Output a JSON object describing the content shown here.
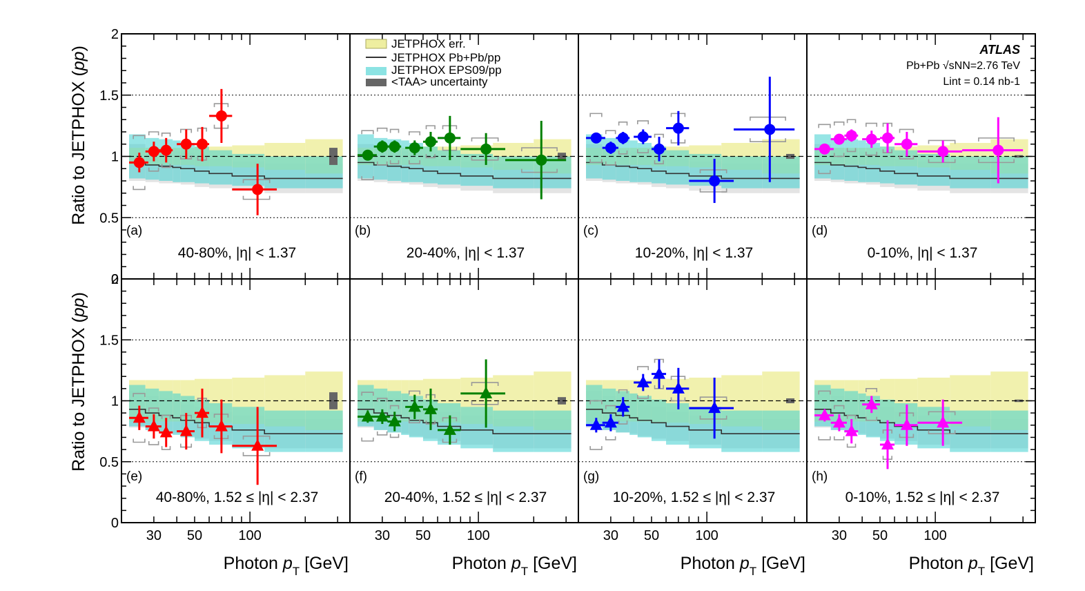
{
  "colors": {
    "red": "#ff0000",
    "green": "#008000",
    "blue": "#0000ff",
    "magenta": "#ff00ff",
    "jetphox_err": "#eeeea0",
    "eps09": "#40d0d0",
    "pbpb_band": "#d8d8d8",
    "taa": "#666666",
    "line": "#333333",
    "sys": "#999999"
  },
  "figure": {
    "ylabel": "Ratio to JETPHOX (pp)",
    "ylabel_main": "Ratio to JETPHOX (",
    "ylabel_italic": "pp",
    "ylabel_close": ")",
    "xlabel_main": "Photon ",
    "xlabel_italic": "p",
    "xlabel_sub": "T",
    "xlabel_unit": " [GeV]",
    "yticks": [
      "0",
      "0.5",
      "1",
      "1.5",
      "2"
    ],
    "xticks": [
      "30",
      "50",
      "100"
    ]
  },
  "legend": {
    "items": [
      {
        "key": "err",
        "label": "JETPHOX err."
      },
      {
        "key": "pbpb",
        "label": "JETPHOX Pb+Pb/pp"
      },
      {
        "key": "eps",
        "label": "JETPHOX EPS09/pp"
      },
      {
        "key": "taa",
        "label": "<TAA> uncertainty"
      }
    ]
  },
  "atlas": {
    "title": "ATLAS",
    "energy": "Pb+Pb √sNN=2.76 TeV",
    "lumi": "Lint = 0.14 nb-1"
  },
  "chart_data": {
    "type": "scatter",
    "x_scale": "log",
    "xlim": [
      20,
      350
    ],
    "ylim": [
      0,
      2
    ],
    "panels": [
      {
        "id": "a",
        "tag": "(a)",
        "label": "40-80%, |η| < 1.37",
        "color": "red",
        "marker": "circle",
        "taa": 0.07,
        "points": [
          {
            "x": 25,
            "y": 0.95,
            "xerr": 3,
            "yerr": 0.08,
            "sys": 0.22
          },
          {
            "x": 30,
            "y": 1.04,
            "xerr": 3,
            "yerr": 0.08,
            "sys": 0.16
          },
          {
            "x": 35,
            "y": 1.05,
            "xerr": 3,
            "yerr": 0.1,
            "sys": 0.14
          },
          {
            "x": 45,
            "y": 1.1,
            "xerr": 5,
            "yerr": 0.12,
            "sys": 0.12
          },
          {
            "x": 55,
            "y": 1.1,
            "xerr": 5,
            "yerr": 0.14,
            "sys": 0.13
          },
          {
            "x": 70,
            "y": 1.33,
            "xerr": 10,
            "yerr": 0.22,
            "sys": 0.1
          },
          {
            "x": 110,
            "y": 0.73,
            "xerr": 30,
            "yerr": 0.21,
            "sys": 0.08
          }
        ]
      },
      {
        "id": "b",
        "tag": "(b)",
        "label": "20-40%, |η| < 1.37",
        "color": "green",
        "marker": "circle",
        "taa": 0.03,
        "points": [
          {
            "x": 25,
            "y": 1.01,
            "xerr": 3,
            "yerr": 0.04,
            "sys": 0.2
          },
          {
            "x": 30,
            "y": 1.08,
            "xerr": 3,
            "yerr": 0.05,
            "sys": 0.15
          },
          {
            "x": 35,
            "y": 1.08,
            "xerr": 3,
            "yerr": 0.05,
            "sys": 0.14
          },
          {
            "x": 45,
            "y": 1.07,
            "xerr": 5,
            "yerr": 0.06,
            "sys": 0.13
          },
          {
            "x": 55,
            "y": 1.12,
            "xerr": 5,
            "yerr": 0.08,
            "sys": 0.13
          },
          {
            "x": 70,
            "y": 1.15,
            "xerr": 10,
            "yerr": 0.18,
            "sys": 0.1
          },
          {
            "x": 110,
            "y": 1.06,
            "xerr": 30,
            "yerr": 0.13,
            "sys": 0.09
          },
          {
            "x": 220,
            "y": 0.97,
            "xerr": 80,
            "yerr": 0.32,
            "sys": 0.1
          }
        ]
      },
      {
        "id": "c",
        "tag": "(c)",
        "label": "10-20%, |η| < 1.37",
        "color": "blue",
        "marker": "circle",
        "taa": 0.02,
        "points": [
          {
            "x": 25,
            "y": 1.15,
            "xerr": 3,
            "yerr": 0.04,
            "sys": 0.2
          },
          {
            "x": 30,
            "y": 1.07,
            "xerr": 3,
            "yerr": 0.05,
            "sys": 0.14
          },
          {
            "x": 35,
            "y": 1.15,
            "xerr": 3,
            "yerr": 0.05,
            "sys": 0.13
          },
          {
            "x": 45,
            "y": 1.16,
            "xerr": 5,
            "yerr": 0.06,
            "sys": 0.13
          },
          {
            "x": 55,
            "y": 1.06,
            "xerr": 5,
            "yerr": 0.1,
            "sys": 0.12
          },
          {
            "x": 70,
            "y": 1.23,
            "xerr": 10,
            "yerr": 0.14,
            "sys": 0.12
          },
          {
            "x": 110,
            "y": 0.8,
            "xerr": 30,
            "yerr": 0.18,
            "sys": 0.09
          },
          {
            "x": 220,
            "y": 1.22,
            "xerr": 80,
            "yerr": 0.43,
            "sys": 0.1
          }
        ]
      },
      {
        "id": "d",
        "tag": "(d)",
        "label": "0-10%, |η| < 1.37",
        "color": "magenta",
        "marker": "circle",
        "taa": 0.01,
        "points": [
          {
            "x": 25,
            "y": 1.06,
            "xerr": 3,
            "yerr": 0.04,
            "sys": 0.2
          },
          {
            "x": 30,
            "y": 1.14,
            "xerr": 3,
            "yerr": 0.04,
            "sys": 0.14
          },
          {
            "x": 35,
            "y": 1.17,
            "xerr": 3,
            "yerr": 0.05,
            "sys": 0.13
          },
          {
            "x": 45,
            "y": 1.14,
            "xerr": 5,
            "yerr": 0.07,
            "sys": 0.13
          },
          {
            "x": 55,
            "y": 1.15,
            "xerr": 5,
            "yerr": 0.12,
            "sys": 0.12
          },
          {
            "x": 70,
            "y": 1.1,
            "xerr": 10,
            "yerr": 0.1,
            "sys": 0.12
          },
          {
            "x": 110,
            "y": 1.04,
            "xerr": 30,
            "yerr": 0.09,
            "sys": 0.09
          },
          {
            "x": 220,
            "y": 1.05,
            "xerr": 80,
            "yerr": 0.27,
            "sys": 0.1
          }
        ]
      },
      {
        "id": "e",
        "tag": "(e)",
        "label": "40-80%, 1.52 ≤ |η| < 2.37",
        "color": "red",
        "marker": "triangle",
        "taa": 0.07,
        "points": [
          {
            "x": 25,
            "y": 0.86,
            "xerr": 3,
            "yerr": 0.1,
            "sys": 0.2
          },
          {
            "x": 30,
            "y": 0.79,
            "xerr": 3,
            "yerr": 0.1,
            "sys": 0.15
          },
          {
            "x": 35,
            "y": 0.74,
            "xerr": 3,
            "yerr": 0.12,
            "sys": 0.14
          },
          {
            "x": 45,
            "y": 0.75,
            "xerr": 5,
            "yerr": 0.15,
            "sys": 0.13
          },
          {
            "x": 55,
            "y": 0.9,
            "xerr": 5,
            "yerr": 0.2,
            "sys": 0.12
          },
          {
            "x": 70,
            "y": 0.79,
            "xerr": 10,
            "yerr": 0.22,
            "sys": 0.1
          },
          {
            "x": 110,
            "y": 0.63,
            "xerr": 30,
            "yerr": 0.32,
            "sys": 0.08
          }
        ]
      },
      {
        "id": "f",
        "tag": "(f)",
        "label": "20-40%, 1.52 ≤ |η| < 2.37",
        "color": "green",
        "marker": "triangle",
        "taa": 0.03,
        "points": [
          {
            "x": 25,
            "y": 0.87,
            "xerr": 3,
            "yerr": 0.05,
            "sys": 0.2
          },
          {
            "x": 30,
            "y": 0.87,
            "xerr": 3,
            "yerr": 0.06,
            "sys": 0.15
          },
          {
            "x": 35,
            "y": 0.83,
            "xerr": 3,
            "yerr": 0.08,
            "sys": 0.13
          },
          {
            "x": 45,
            "y": 0.95,
            "xerr": 5,
            "yerr": 0.1,
            "sys": 0.13
          },
          {
            "x": 55,
            "y": 0.93,
            "xerr": 5,
            "yerr": 0.17,
            "sys": 0.12
          },
          {
            "x": 70,
            "y": 0.76,
            "xerr": 10,
            "yerr": 0.12,
            "sys": 0.1
          },
          {
            "x": 110,
            "y": 1.06,
            "xerr": 30,
            "yerr": 0.28,
            "sys": 0.09
          }
        ]
      },
      {
        "id": "g",
        "tag": "(g)",
        "label": "10-20%, 1.52 ≤ |η| < 2.37",
        "color": "blue",
        "marker": "triangle",
        "taa": 0.02,
        "points": [
          {
            "x": 25,
            "y": 0.8,
            "xerr": 3,
            "yerr": 0.06,
            "sys": 0.2
          },
          {
            "x": 30,
            "y": 0.82,
            "xerr": 3,
            "yerr": 0.07,
            "sys": 0.14
          },
          {
            "x": 35,
            "y": 0.95,
            "xerr": 3,
            "yerr": 0.08,
            "sys": 0.14
          },
          {
            "x": 45,
            "y": 1.15,
            "xerr": 5,
            "yerr": 0.07,
            "sys": 0.13
          },
          {
            "x": 55,
            "y": 1.22,
            "xerr": 5,
            "yerr": 0.12,
            "sys": 0.12
          },
          {
            "x": 70,
            "y": 1.1,
            "xerr": 10,
            "yerr": 0.17,
            "sys": 0.1
          },
          {
            "x": 110,
            "y": 0.94,
            "xerr": 30,
            "yerr": 0.25,
            "sys": 0.09
          }
        ]
      },
      {
        "id": "h",
        "tag": "(h)",
        "label": "0-10%, 1.52 ≤ |η| < 2.37",
        "color": "magenta",
        "marker": "triangle",
        "taa": 0.01,
        "points": [
          {
            "x": 25,
            "y": 0.88,
            "xerr": 3,
            "yerr": 0.05,
            "sys": 0.2
          },
          {
            "x": 30,
            "y": 0.82,
            "xerr": 3,
            "yerr": 0.07,
            "sys": 0.14
          },
          {
            "x": 35,
            "y": 0.75,
            "xerr": 3,
            "yerr": 0.1,
            "sys": 0.13
          },
          {
            "x": 45,
            "y": 0.97,
            "xerr": 5,
            "yerr": 0.07,
            "sys": 0.13
          },
          {
            "x": 55,
            "y": 0.64,
            "xerr": 5,
            "yerr": 0.2,
            "sys": 0.12
          },
          {
            "x": 70,
            "y": 0.8,
            "xerr": 10,
            "yerr": 0.17,
            "sys": 0.1
          },
          {
            "x": 110,
            "y": 0.82,
            "xerr": 30,
            "yerr": 0.19,
            "sys": 0.09
          }
        ]
      }
    ],
    "bins": [
      22,
      27,
      32,
      38,
      42,
      50,
      60,
      80,
      120,
      200,
      320
    ],
    "theory_central": {
      "top": [
        0.95,
        0.93,
        0.92,
        0.91,
        0.9,
        0.88,
        0.86,
        0.84,
        0.82,
        0.82
      ],
      "bottom": [
        0.93,
        0.9,
        0.88,
        0.86,
        0.84,
        0.82,
        0.79,
        0.76,
        0.73,
        0.73
      ]
    },
    "jetphox_err_half_width": {
      "top": [
        0.07,
        0.07,
        0.07,
        0.07,
        0.07,
        0.08,
        0.08,
        0.09,
        0.11,
        0.14
      ],
      "bottom": [
        0.17,
        0.17,
        0.17,
        0.17,
        0.17,
        0.18,
        0.18,
        0.19,
        0.21,
        0.24
      ]
    },
    "eps09_center": {
      "top": [
        1.0,
        0.98,
        0.97,
        0.96,
        0.95,
        0.93,
        0.91,
        0.89,
        0.87,
        0.87
      ],
      "bottom": [
        0.96,
        0.93,
        0.91,
        0.89,
        0.87,
        0.84,
        0.81,
        0.78,
        0.75,
        0.75
      ]
    },
    "eps09_half_width": {
      "top": [
        0.18,
        0.17,
        0.17,
        0.17,
        0.16,
        0.15,
        0.14,
        0.13,
        0.13,
        0.13
      ],
      "bottom": [
        0.17,
        0.17,
        0.17,
        0.17,
        0.17,
        0.17,
        0.17,
        0.17,
        0.17,
        0.17
      ]
    },
    "pbpb_half_width": [
      0.15,
      0.14,
      0.14,
      0.13,
      0.13,
      0.13,
      0.12,
      0.12,
      0.12,
      0.12
    ]
  }
}
